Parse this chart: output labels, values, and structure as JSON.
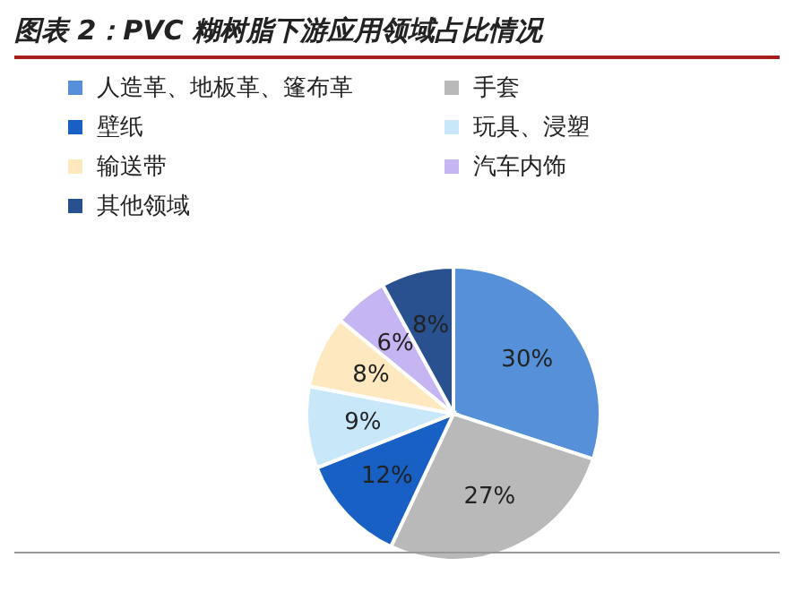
{
  "chart_data": {
    "type": "pie",
    "title": "图表 2：PVC 糊树脂下游应用领域占比情况",
    "categories": [
      "人造革、地板革、篷布革",
      "手套",
      "壁纸",
      "玩具、浸塑",
      "输送带",
      "汽车内饰",
      "其他领域"
    ],
    "values": [
      30,
      27,
      12,
      9,
      8,
      6,
      8
    ],
    "colors": [
      "#5590d9",
      "#b9b9b9",
      "#1860c4",
      "#c8e8f9",
      "#fde8c0",
      "#c5b5f2",
      "#2a518f"
    ],
    "value_labels": [
      "30%",
      "27%",
      "12%",
      "9%",
      "8%",
      "6%",
      "8%"
    ],
    "legend": "top"
  }
}
